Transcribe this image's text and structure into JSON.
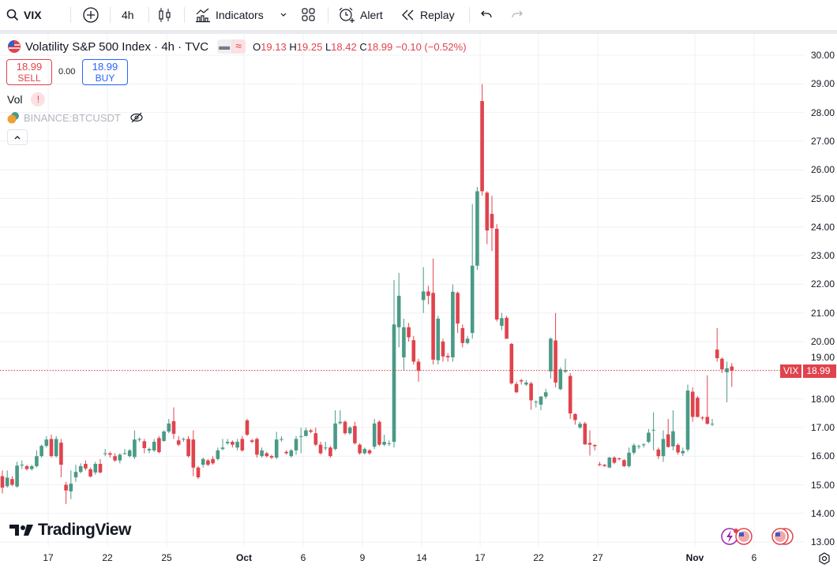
{
  "toolbar": {
    "symbol": "VIX",
    "interval": "4h",
    "indicators": "Indicators",
    "alert": "Alert",
    "replay": "Replay"
  },
  "legend": {
    "title": "Volatility S&P 500 Index · 4h · TVC",
    "o_label": "O",
    "o": "19.13",
    "h_label": "H",
    "h": "19.25",
    "l_label": "L",
    "l": "18.42",
    "c_label": "C",
    "c": "18.99",
    "change": "−0.10 (−0.52%)",
    "sell_price": "18.99",
    "sell_label": "SELL",
    "spread": "0.00",
    "buy_price": "18.99",
    "buy_label": "BUY",
    "vol_label": "Vol",
    "vol_warning": "!",
    "overlay_symbol": "BINANCE:BTCUSDT"
  },
  "price_label": {
    "symbol": "VIX",
    "value": "18.99"
  },
  "branding": "TradingView",
  "colors": {
    "up": "#26a69a",
    "down": "#e0434d",
    "up_display": "#4a9a86",
    "down_display": "#e0434d",
    "accent": "#2962ff"
  },
  "chart_data": {
    "type": "candlestick",
    "ylim": [
      13,
      30.3
    ],
    "y_ticks": [
      "30.00",
      "29.00",
      "28.00",
      "27.00",
      "26.00",
      "25.00",
      "24.00",
      "23.00",
      "22.00",
      "21.00",
      "20.00",
      "19.00",
      "18.00",
      "17.00",
      "16.00",
      "15.00",
      "14.00",
      "13.00"
    ],
    "x_ticks": [
      "17",
      "22",
      "25",
      "Oct",
      "6",
      "9",
      "14",
      "17",
      "22",
      "27",
      "Nov",
      "6"
    ],
    "grid": true,
    "last_price": 18.99,
    "candles": [
      [
        15.3,
        15.5,
        14.7,
        14.9
      ],
      [
        14.95,
        15.5,
        14.9,
        15.25
      ],
      [
        15.2,
        15.3,
        14.95,
        15.0
      ],
      [
        14.94,
        15.8,
        14.9,
        15.67
      ],
      [
        15.7,
        15.85,
        15.55,
        15.7
      ],
      [
        15.65,
        15.7,
        15.5,
        15.55
      ],
      [
        15.55,
        15.7,
        15.5,
        15.65
      ],
      [
        15.65,
        16.2,
        15.6,
        16.0
      ],
      [
        16.0,
        16.4,
        15.95,
        16.36
      ],
      [
        16.36,
        16.7,
        16.3,
        16.58
      ],
      [
        16.6,
        16.75,
        15.95,
        16.0
      ],
      [
        16.0,
        16.7,
        15.95,
        16.6
      ],
      [
        16.47,
        16.6,
        15.26,
        15.7
      ],
      [
        15.0,
        15.1,
        14.33,
        14.8
      ],
      [
        14.77,
        15.5,
        14.5,
        15.04
      ],
      [
        15.26,
        15.7,
        15.1,
        15.45
      ],
      [
        15.45,
        15.75,
        15.4,
        15.65
      ],
      [
        15.73,
        15.85,
        15.5,
        15.57
      ],
      [
        15.54,
        15.6,
        15.25,
        15.29
      ],
      [
        15.43,
        15.8,
        15.35,
        15.73
      ],
      [
        15.73,
        15.9,
        15.4,
        15.43
      ],
      [
        16.1,
        16.25,
        16.0,
        16.1
      ],
      [
        16.1,
        16.15,
        15.95,
        16.05
      ],
      [
        16.0,
        16.1,
        15.8,
        15.85
      ],
      [
        15.85,
        16.1,
        15.75,
        16.05
      ],
      [
        16.1,
        16.25,
        16.05,
        16.1
      ],
      [
        16.0,
        16.25,
        15.95,
        16.2
      ],
      [
        15.97,
        16.9,
        15.9,
        16.58
      ],
      [
        16.6,
        16.65,
        16.5,
        16.6
      ],
      [
        16.52,
        16.6,
        16.1,
        16.28
      ],
      [
        16.2,
        16.3,
        16.1,
        16.25
      ],
      [
        16.2,
        16.6,
        16.15,
        16.5
      ],
      [
        16.63,
        16.7,
        16.1,
        16.14
      ],
      [
        16.53,
        16.9,
        16.5,
        16.86
      ],
      [
        16.86,
        17.3,
        16.8,
        17.14
      ],
      [
        17.22,
        17.7,
        16.6,
        16.78
      ],
      [
        16.55,
        16.7,
        16.35,
        16.4
      ],
      [
        16.6,
        16.65,
        16.5,
        16.6
      ],
      [
        16.6,
        16.7,
        15.95,
        16.0
      ],
      [
        16.58,
        16.9,
        15.3,
        15.6
      ],
      [
        15.6,
        15.65,
        15.2,
        15.26
      ],
      [
        15.7,
        15.95,
        15.6,
        15.9
      ],
      [
        15.85,
        15.9,
        15.65,
        15.7
      ],
      [
        15.9,
        16.0,
        15.7,
        15.75
      ],
      [
        15.9,
        16.3,
        15.85,
        16.2
      ],
      [
        16.25,
        16.6,
        16.2,
        16.3
      ],
      [
        16.45,
        16.6,
        16.4,
        16.5
      ],
      [
        16.5,
        16.55,
        16.3,
        16.4
      ],
      [
        16.3,
        16.6,
        16.2,
        16.5
      ],
      [
        16.6,
        16.7,
        16.15,
        16.2
      ],
      [
        17.25,
        17.3,
        16.7,
        16.75
      ],
      [
        16.55,
        16.6,
        16.45,
        16.5
      ],
      [
        16.6,
        16.65,
        15.95,
        16.05
      ],
      [
        16.0,
        16.3,
        15.95,
        16.2
      ],
      [
        16.1,
        16.15,
        15.95,
        16.0
      ],
      [
        16.0,
        16.05,
        15.9,
        15.95
      ],
      [
        15.95,
        16.85,
        15.9,
        16.58
      ],
      [
        16.6,
        16.7,
        16.5,
        16.6
      ],
      [
        16.15,
        16.2,
        16.05,
        16.1
      ],
      [
        16.0,
        16.25,
        15.95,
        16.2
      ],
      [
        16.2,
        16.7,
        16.05,
        16.6
      ],
      [
        16.7,
        17.0,
        16.1,
        16.7
      ],
      [
        16.7,
        17.0,
        16.7,
        16.9
      ],
      [
        16.9,
        16.95,
        16.8,
        16.85
      ],
      [
        16.8,
        17.0,
        16.35,
        16.4
      ],
      [
        16.4,
        16.5,
        16.05,
        16.1
      ],
      [
        16.3,
        16.5,
        16.2,
        16.3
      ],
      [
        16.3,
        16.35,
        15.95,
        16.0
      ],
      [
        16.25,
        17.6,
        16.2,
        17.14
      ],
      [
        17.15,
        17.6,
        17.1,
        17.2
      ],
      [
        17.2,
        17.25,
        16.75,
        16.8
      ],
      [
        16.8,
        17.05,
        16.75,
        17.0
      ],
      [
        17.05,
        17.2,
        16.4,
        16.45
      ],
      [
        16.4,
        16.45,
        16.05,
        16.1
      ],
      [
        16.1,
        16.3,
        16.05,
        16.25
      ],
      [
        16.2,
        16.25,
        16.05,
        16.1
      ],
      [
        16.33,
        17.3,
        16.25,
        17.14
      ],
      [
        17.2,
        17.25,
        16.35,
        16.4
      ],
      [
        16.4,
        16.75,
        16.35,
        16.5
      ],
      [
        16.45,
        16.55,
        16.35,
        16.45
      ],
      [
        16.5,
        22.15,
        16.3,
        20.6
      ],
      [
        20.5,
        22.4,
        19.8,
        21.6
      ],
      [
        19.45,
        20.8,
        19.0,
        20.5
      ],
      [
        20.5,
        20.65,
        20.0,
        20.15
      ],
      [
        20.05,
        20.2,
        19.2,
        19.3
      ],
      [
        19.3,
        19.4,
        18.6,
        18.98
      ],
      [
        21.45,
        22.6,
        21.0,
        21.75
      ],
      [
        21.75,
        21.95,
        21.3,
        21.6
      ],
      [
        21.7,
        22.9,
        19.2,
        19.37
      ],
      [
        19.35,
        20.9,
        19.2,
        20.8
      ],
      [
        20.0,
        20.1,
        19.3,
        19.48
      ],
      [
        19.5,
        19.6,
        19.3,
        19.45
      ],
      [
        19.45,
        22.0,
        19.3,
        21.74
      ],
      [
        21.7,
        21.75,
        20.3,
        20.63
      ],
      [
        20.47,
        20.6,
        19.8,
        19.95
      ],
      [
        19.95,
        20.2,
        19.9,
        20.1
      ],
      [
        20.3,
        24.8,
        20.1,
        22.65
      ],
      [
        22.65,
        25.4,
        22.5,
        25.25
      ],
      [
        28.4,
        28.99,
        25.1,
        25.25
      ],
      [
        25.2,
        25.25,
        23.4,
        23.88
      ],
      [
        24.46,
        25.09,
        23.16,
        23.96
      ],
      [
        23.94,
        24.1,
        20.7,
        20.77
      ],
      [
        20.55,
        21.0,
        20.4,
        20.82
      ],
      [
        20.83,
        20.9,
        20.1,
        20.1
      ],
      [
        19.92,
        19.95,
        18.5,
        18.54
      ],
      [
        18.52,
        18.6,
        18.2,
        18.23
      ],
      [
        18.65,
        18.7,
        18.5,
        18.61
      ],
      [
        18.5,
        18.65,
        18.45,
        18.57
      ],
      [
        18.54,
        18.6,
        17.62,
        17.95
      ],
      [
        17.9,
        17.95,
        17.7,
        17.9
      ],
      [
        17.8,
        18.1,
        17.6,
        18.08
      ],
      [
        18.08,
        18.35,
        18.0,
        18.23
      ],
      [
        18.96,
        20.15,
        18.7,
        20.1
      ],
      [
        20.04,
        21.0,
        18.4,
        18.57
      ],
      [
        18.34,
        19.1,
        18.3,
        19.03
      ],
      [
        18.95,
        19.4,
        18.9,
        19.0
      ],
      [
        18.8,
        18.9,
        17.3,
        17.49
      ],
      [
        17.47,
        17.5,
        17.1,
        17.26
      ],
      [
        17.0,
        17.2,
        16.95,
        17.13
      ],
      [
        17.14,
        17.2,
        16.4,
        16.41
      ],
      [
        16.46,
        16.9,
        16.02,
        16.4
      ],
      [
        16.39,
        16.42,
        16.2,
        16.35
      ],
      [
        15.72,
        15.8,
        15.65,
        15.69
      ],
      [
        15.7,
        15.72,
        15.62,
        15.66
      ],
      [
        15.6,
        15.98,
        15.58,
        15.95
      ],
      [
        15.95,
        16.0,
        15.72,
        15.77
      ],
      [
        15.92,
        15.95,
        15.85,
        15.9
      ],
      [
        15.86,
        15.9,
        15.62,
        15.65
      ],
      [
        15.65,
        16.3,
        15.6,
        16.12
      ],
      [
        16.12,
        16.45,
        16.05,
        16.38
      ],
      [
        16.35,
        16.4,
        16.25,
        16.35
      ],
      [
        16.38,
        16.45,
        16.3,
        16.41
      ],
      [
        16.5,
        16.95,
        16.45,
        16.82
      ],
      [
        16.9,
        17.53,
        16.2,
        16.92
      ],
      [
        16.23,
        16.3,
        15.9,
        16.0
      ],
      [
        16.0,
        16.9,
        15.8,
        16.6
      ],
      [
        16.76,
        17.3,
        16.3,
        16.32
      ],
      [
        16.34,
        17.6,
        16.2,
        16.87
      ],
      [
        16.39,
        16.45,
        16.05,
        16.13
      ],
      [
        16.1,
        16.3,
        16.0,
        16.18
      ],
      [
        16.23,
        18.5,
        16.15,
        18.29
      ],
      [
        18.25,
        18.4,
        17.2,
        17.37
      ],
      [
        18.04,
        18.1,
        17.35,
        17.37
      ],
      [
        17.35,
        17.4,
        17.25,
        17.33
      ],
      [
        17.37,
        18.82,
        17.1,
        17.13
      ],
      [
        17.13,
        17.3,
        17.05,
        17.13
      ],
      [
        19.72,
        20.47,
        19.3,
        19.42
      ],
      [
        19.4,
        19.45,
        18.9,
        19.03
      ],
      [
        18.93,
        19.3,
        17.88,
        19.07
      ],
      [
        19.13,
        19.25,
        18.42,
        18.99
      ]
    ]
  }
}
